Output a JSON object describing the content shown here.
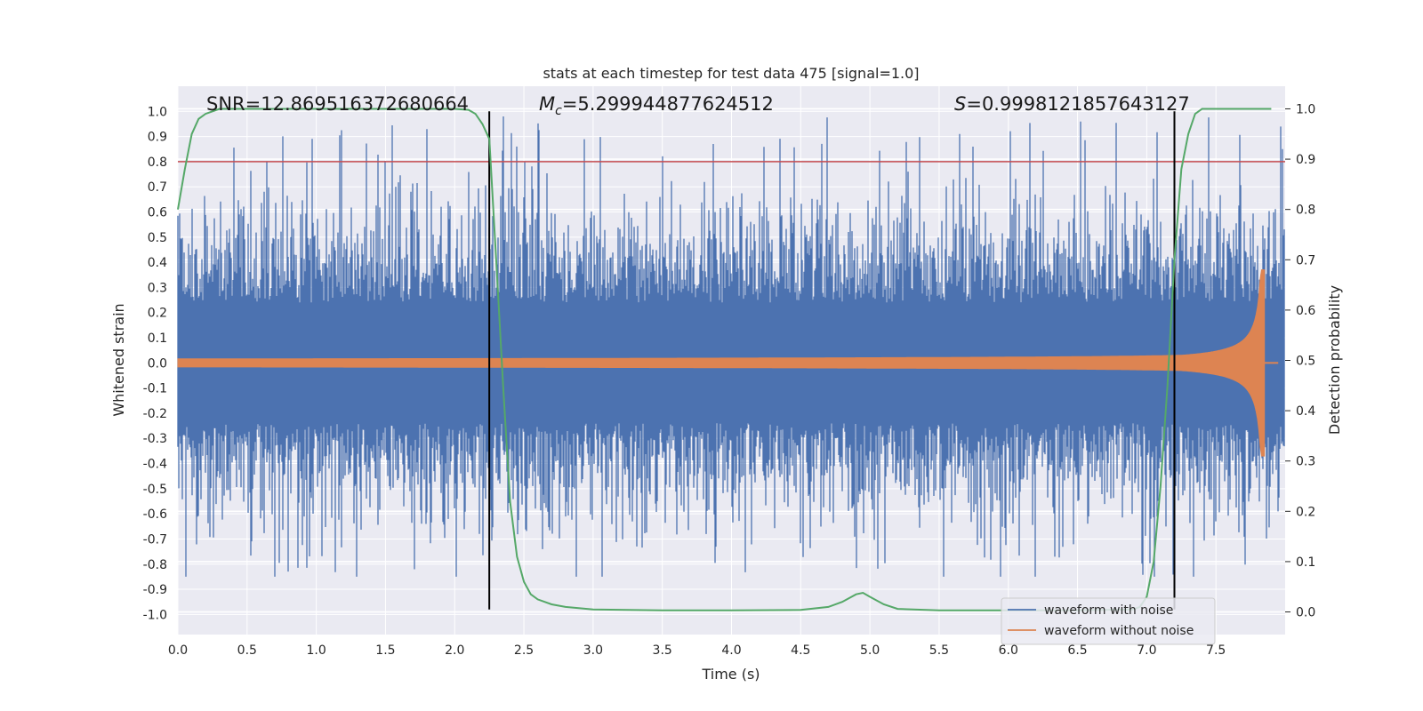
{
  "chart_data": {
    "type": "line",
    "title": "stats at each timestep for test data 475 [signal=1.0]",
    "xlabel": "Time (s)",
    "ylabel": "Whitened strain",
    "y2label": "Detection probability",
    "xlim": [
      0.0,
      8.0
    ],
    "ylim": [
      -1.08,
      1.1
    ],
    "y2lim": [
      -0.045,
      1.045
    ],
    "xticks": [
      "0.0",
      "0.5",
      "1.0",
      "1.5",
      "2.0",
      "2.5",
      "3.0",
      "3.5",
      "4.0",
      "4.5",
      "5.0",
      "5.5",
      "6.0",
      "6.5",
      "7.0",
      "7.5"
    ],
    "yticks": [
      "1.0",
      "0.9",
      "0.8",
      "0.7",
      "0.6",
      "0.5",
      "0.4",
      "0.3",
      "0.2",
      "0.1",
      "0.0",
      "-0.1",
      "-0.2",
      "-0.3",
      "-0.4",
      "-0.5",
      "-0.6",
      "-0.7",
      "-0.8",
      "-0.9",
      "-1.0"
    ],
    "y2ticks": [
      "1.0",
      "0.9",
      "0.8",
      "0.7",
      "0.6",
      "0.5",
      "0.4",
      "0.3",
      "0.2",
      "0.1",
      "0.0"
    ],
    "annotations": {
      "snr": "SNR=12.869516372680664",
      "mc_symbol": "M",
      "mc_sub": "c",
      "mc_value": "=5.299944877624512",
      "s_symbol": "S",
      "s_value": "=0.9998121857643127"
    },
    "threshold": {
      "value": 0.8,
      "color": "#c44e52"
    },
    "vlines": [
      2.25,
      7.2
    ],
    "series": [
      {
        "name": "waveform with noise",
        "color": "#4c72b0",
        "kind": "noise",
        "amplitude_envelope": [
          -0.85,
          0.98
        ]
      },
      {
        "name": "waveform without noise",
        "color": "#dd8452",
        "kind": "chirp",
        "peak": 0.37,
        "merger_time": 7.85
      },
      {
        "name": "detection probability",
        "color": "#55a868",
        "axis": "right",
        "x": [
          0.0,
          0.05,
          0.1,
          0.15,
          0.2,
          0.3,
          0.5,
          1.0,
          1.5,
          2.0,
          2.1,
          2.15,
          2.2,
          2.25,
          2.3,
          2.35,
          2.4,
          2.45,
          2.5,
          2.55,
          2.6,
          2.7,
          2.8,
          3.0,
          3.5,
          4.0,
          4.5,
          4.7,
          4.8,
          4.9,
          4.95,
          5.0,
          5.1,
          5.2,
          5.5,
          6.0,
          6.5,
          6.9,
          6.95,
          7.0,
          7.05,
          7.1,
          7.15,
          7.2,
          7.25,
          7.3,
          7.35,
          7.4,
          7.5,
          7.6,
          7.9
        ],
        "y": [
          0.8,
          0.88,
          0.95,
          0.98,
          0.99,
          1.0,
          1.0,
          1.0,
          1.0,
          1.0,
          0.998,
          0.99,
          0.97,
          0.94,
          0.7,
          0.45,
          0.22,
          0.11,
          0.06,
          0.035,
          0.025,
          0.015,
          0.01,
          0.005,
          0.003,
          0.003,
          0.004,
          0.01,
          0.02,
          0.035,
          0.038,
          0.03,
          0.015,
          0.006,
          0.003,
          0.003,
          0.003,
          0.005,
          0.01,
          0.03,
          0.1,
          0.25,
          0.45,
          0.7,
          0.88,
          0.95,
          0.99,
          1.0,
          1.0,
          1.0,
          1.0
        ]
      }
    ],
    "legend": {
      "location": "lower-right"
    }
  }
}
